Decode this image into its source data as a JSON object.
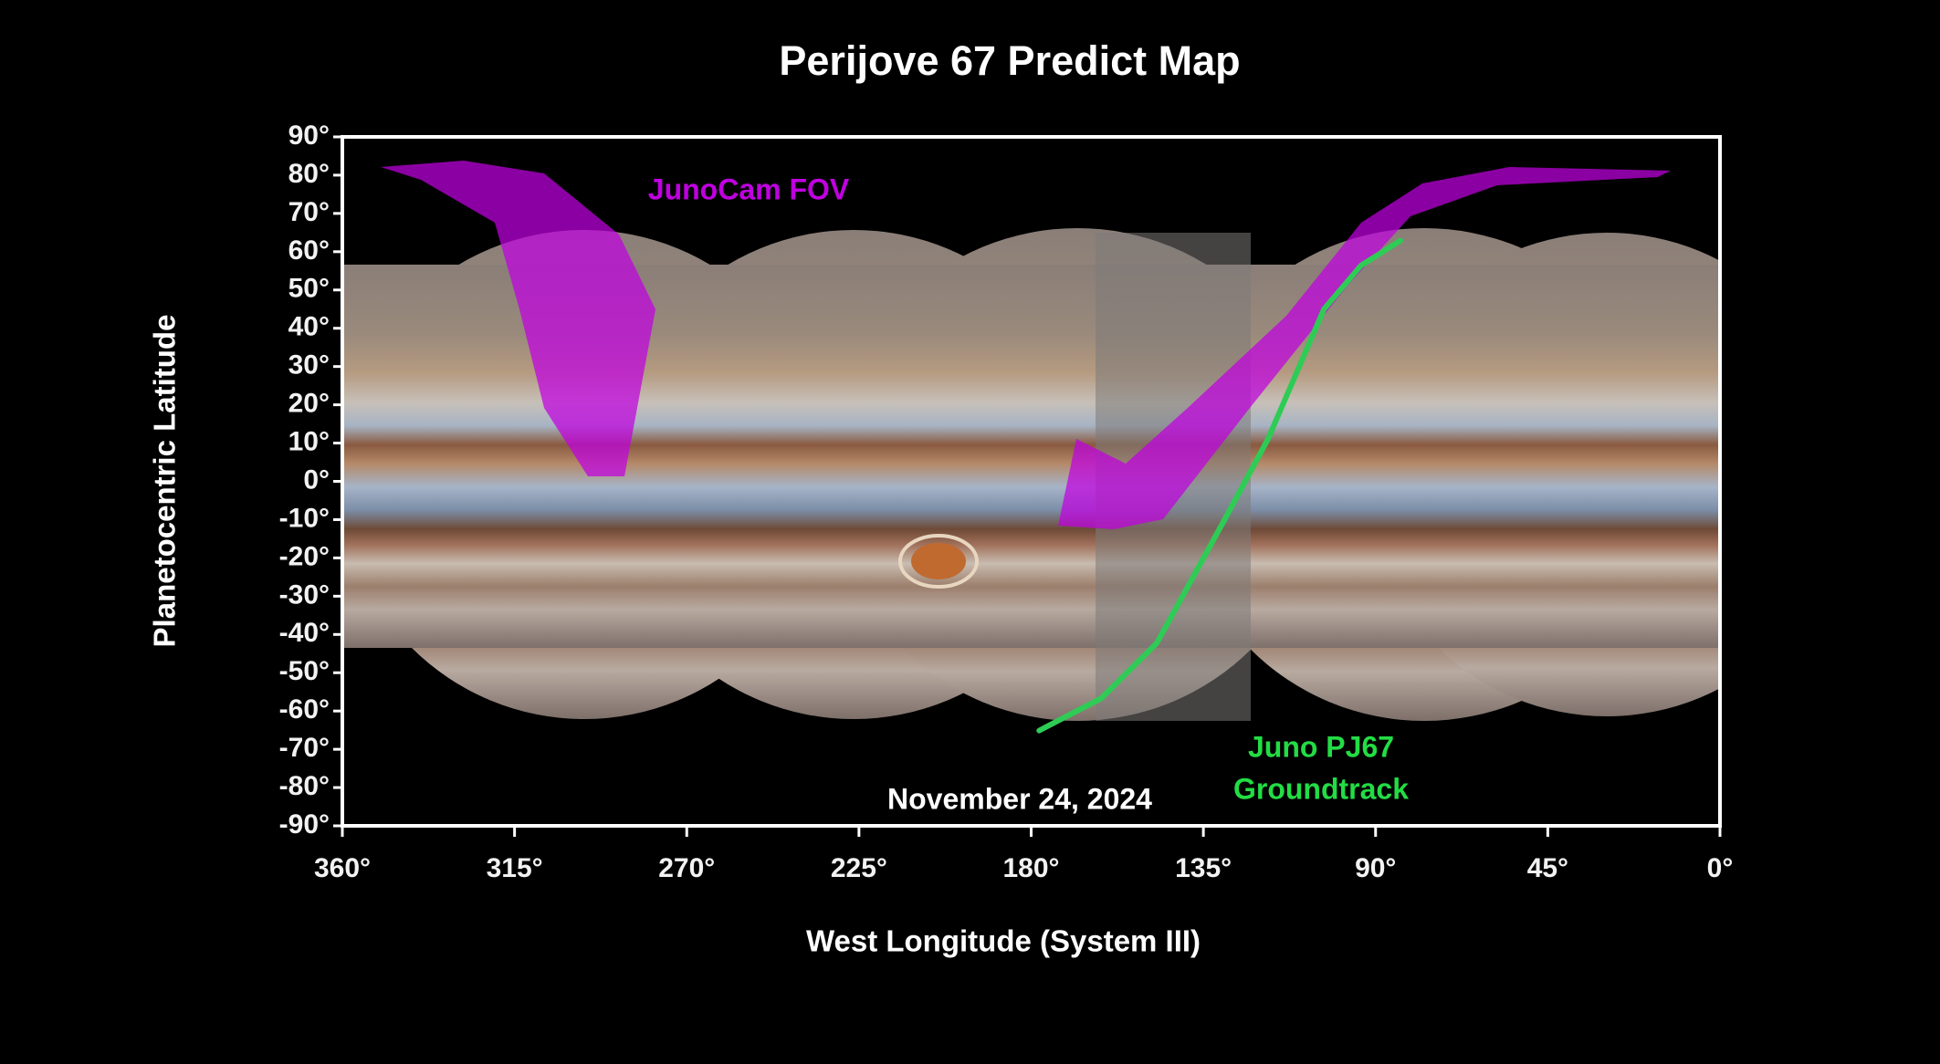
{
  "chart_data": {
    "type": "map",
    "title": "Perijove 67 Predict Map",
    "x_label": "West Longitude (System III)",
    "y_label": "Planetocentric Latitude",
    "xlim": [
      360,
      0
    ],
    "ylim": [
      -90,
      90
    ],
    "xticks": [
      {
        "value": 360,
        "label": "360°"
      },
      {
        "value": 315,
        "label": "315°"
      },
      {
        "value": 270,
        "label": "270°"
      },
      {
        "value": 225,
        "label": "225°"
      },
      {
        "value": 180,
        "label": "180°"
      },
      {
        "value": 135,
        "label": "135°"
      },
      {
        "value": 90,
        "label": "90°"
      },
      {
        "value": 45,
        "label": "45°"
      },
      {
        "value": 0,
        "label": "0°"
      }
    ],
    "yticks": [
      {
        "value": 90,
        "label": "90°"
      },
      {
        "value": 80,
        "label": "80°"
      },
      {
        "value": 70,
        "label": "70°"
      },
      {
        "value": 60,
        "label": "60°"
      },
      {
        "value": 50,
        "label": "50°"
      },
      {
        "value": 40,
        "label": "40°"
      },
      {
        "value": 30,
        "label": "30°"
      },
      {
        "value": 20,
        "label": "20°"
      },
      {
        "value": 10,
        "label": "10°"
      },
      {
        "value": 0,
        "label": "0°"
      },
      {
        "value": -10,
        "label": "-10°"
      },
      {
        "value": -20,
        "label": "-20°"
      },
      {
        "value": -30,
        "label": "-30°"
      },
      {
        "value": -40,
        "label": "-40°"
      },
      {
        "value": -50,
        "label": "-50°"
      },
      {
        "value": -60,
        "label": "-60°"
      },
      {
        "value": -70,
        "label": "-70°"
      },
      {
        "value": -80,
        "label": "-80°"
      },
      {
        "value": -90,
        "label": "-90°"
      }
    ],
    "series": [
      {
        "color": "#2ecc55",
        "x": [
          177.9,
          161.7,
          147.2,
          129.4,
          118.1,
          103.5,
          93.8,
          83.5
        ],
        "y": [
          -65.1,
          -56.7,
          -42.3,
          -9.9,
          11.1,
          45,
          56.4,
          62.9
        ]
      }
    ],
    "annotations": {
      "fov": "JunoCam FOV",
      "track_line1": "Juno PJ67",
      "track_line2": "Groundtrack",
      "date": "November 24, 2024"
    }
  }
}
